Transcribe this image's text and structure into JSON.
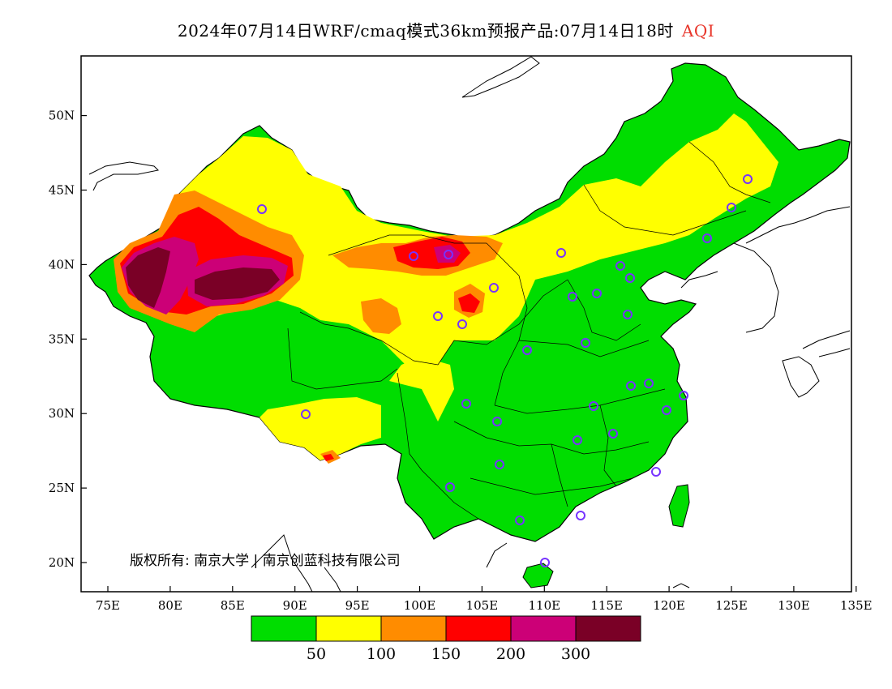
{
  "title": {
    "main": "2024年07月14日WRF/cmaq模式36km预报产品:07月14日18时",
    "variable": "AQI"
  },
  "axes": {
    "x_ticks": [
      "75E",
      "80E",
      "85E",
      "90E",
      "95E",
      "100E",
      "105E",
      "110E",
      "115E",
      "120E",
      "125E",
      "130E",
      "135E"
    ],
    "y_ticks": [
      "20N",
      "25N",
      "30N",
      "35N",
      "40N",
      "45N",
      "50N"
    ]
  },
  "copyright": "版权所有: 南京大学 | 南京创蓝科技有限公司",
  "legend": {
    "colors": [
      "#00dd00",
      "#ffff00",
      "#ff8c00",
      "#ff0000",
      "#cc0077",
      "#7a0026"
    ],
    "labels": [
      "50",
      "100",
      "150",
      "200",
      "300"
    ]
  },
  "colors": {
    "good": "#00dd00",
    "moderate": "#ffff00",
    "usg": "#ff8c00",
    "unhealthy": "#ff0000",
    "very_unhealthy": "#cc0077",
    "hazardous": "#7a0026",
    "station_marker": "#7733ff"
  }
}
